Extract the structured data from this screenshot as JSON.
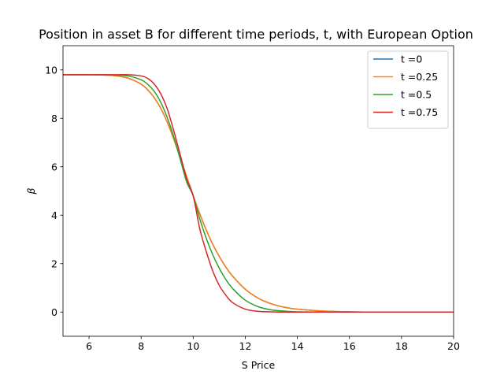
{
  "chart_data": {
    "type": "line",
    "title": "Position in asset B for different time periods, t, with European Option",
    "xlabel": "S Price",
    "ylabel": "β",
    "xlim": [
      5,
      20
    ],
    "ylim": [
      -1,
      11
    ],
    "xticks": [
      6,
      8,
      10,
      12,
      14,
      16,
      18,
      20
    ],
    "yticks": [
      0,
      2,
      4,
      6,
      8,
      10
    ],
    "grid": false,
    "legend_position": "upper-right",
    "x": [
      5,
      5.5,
      6,
      6.5,
      7,
      7.5,
      8,
      8.25,
      8.5,
      8.75,
      9,
      9.25,
      9.5,
      9.75,
      10,
      10.25,
      10.5,
      10.75,
      11,
      11.25,
      11.5,
      12,
      12.5,
      13,
      13.5,
      14,
      15,
      16,
      17,
      18,
      19,
      20
    ],
    "series": [
      {
        "name": "t =0",
        "color": "#1f77b4",
        "values": [
          9.8,
          9.8,
          9.8,
          9.79,
          9.76,
          9.66,
          9.41,
          9.18,
          8.86,
          8.42,
          7.85,
          7.16,
          6.39,
          5.58,
          4.8,
          4.06,
          3.39,
          2.8,
          2.3,
          1.86,
          1.5,
          0.94,
          0.57,
          0.34,
          0.2,
          0.12,
          0.04,
          0.01,
          0.0,
          0.0,
          0.0,
          0.0
        ]
      },
      {
        "name": "t =0.25",
        "color": "#ff7f0e",
        "values": [
          9.8,
          9.8,
          9.8,
          9.79,
          9.76,
          9.66,
          9.41,
          9.18,
          8.86,
          8.42,
          7.85,
          7.16,
          6.39,
          5.58,
          4.8,
          4.06,
          3.39,
          2.8,
          2.3,
          1.86,
          1.5,
          0.94,
          0.57,
          0.34,
          0.2,
          0.12,
          0.04,
          0.01,
          0.0,
          0.0,
          0.0,
          0.0
        ]
      },
      {
        "name": "t =0.5",
        "color": "#2ca02c",
        "values": [
          9.8,
          9.8,
          9.8,
          9.8,
          9.79,
          9.75,
          9.59,
          9.41,
          9.12,
          8.67,
          8.04,
          7.25,
          6.32,
          5.37,
          4.8,
          3.85,
          3.05,
          2.37,
          1.81,
          1.35,
          0.99,
          0.49,
          0.22,
          0.09,
          0.04,
          0.01,
          0.0,
          0.0,
          0.0,
          0.0,
          0.0,
          0.0
        ]
      },
      {
        "name": "t =0.75",
        "color": "#d62728",
        "values": [
          9.8,
          9.8,
          9.8,
          9.8,
          9.8,
          9.8,
          9.75,
          9.65,
          9.42,
          9.02,
          8.4,
          7.5,
          6.5,
          5.5,
          4.8,
          3.45,
          2.5,
          1.7,
          1.1,
          0.7,
          0.4,
          0.12,
          0.03,
          0.01,
          0.0,
          0.0,
          0.0,
          0.0,
          0.0,
          0.0,
          0.0,
          0.0
        ]
      }
    ]
  }
}
